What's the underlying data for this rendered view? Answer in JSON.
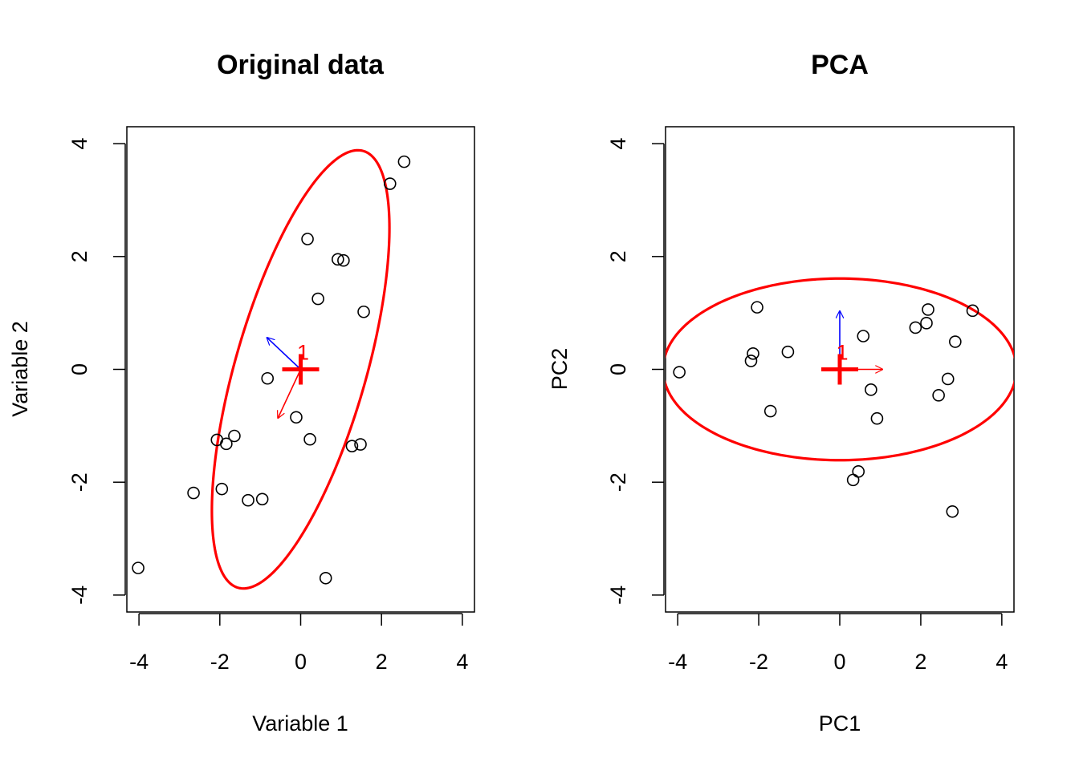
{
  "chart_data": [
    {
      "type": "scatter",
      "title": "Original data",
      "xlabel": "Variable 1",
      "ylabel": "Variable 2",
      "xlim": [
        -4.3,
        4.3
      ],
      "ylim": [
        -4.3,
        4.3
      ],
      "xticks": [
        "-4",
        "-2",
        "0",
        "2",
        "4"
      ],
      "yticks": [
        "-4",
        "-2",
        "0",
        "2",
        "4"
      ],
      "grid": false,
      "points": [
        {
          "x": -4.02,
          "y": -3.52
        },
        {
          "x": -2.65,
          "y": -2.19
        },
        {
          "x": -2.07,
          "y": -1.25
        },
        {
          "x": -1.95,
          "y": -2.12
        },
        {
          "x": -1.84,
          "y": -1.32
        },
        {
          "x": -1.64,
          "y": -1.18
        },
        {
          "x": -1.3,
          "y": -2.32
        },
        {
          "x": -0.95,
          "y": -2.3
        },
        {
          "x": -0.82,
          "y": -0.16
        },
        {
          "x": -0.11,
          "y": -0.85
        },
        {
          "x": 0.17,
          "y": 2.31
        },
        {
          "x": 0.23,
          "y": -1.24
        },
        {
          "x": 0.43,
          "y": 1.25
        },
        {
          "x": 0.62,
          "y": -3.7
        },
        {
          "x": 0.92,
          "y": 1.95
        },
        {
          "x": 1.06,
          "y": 1.93
        },
        {
          "x": 1.27,
          "y": -1.36
        },
        {
          "x": 1.48,
          "y": -1.33
        },
        {
          "x": 1.56,
          "y": 1.02
        },
        {
          "x": 2.21,
          "y": 3.29
        },
        {
          "x": 2.56,
          "y": 3.68
        }
      ],
      "center": {
        "x": 0.0,
        "y": 0.0,
        "label": "1",
        "color": "#ff0000"
      },
      "ellipse": {
        "cx": 0.0,
        "cy": 0.0,
        "semi_major": 4.18,
        "semi_minor": 1.56,
        "angle_deg": 66.5,
        "color": "#ff0000"
      },
      "vectors": [
        {
          "dx": -0.83,
          "dy": 0.56,
          "color": "#0000ff"
        },
        {
          "dx": -0.56,
          "dy": -0.86,
          "color": "#ff0000"
        }
      ]
    },
    {
      "type": "scatter",
      "title": "PCA",
      "xlabel": "PC1",
      "ylabel": "PC2",
      "xlim": [
        -4.3,
        4.3
      ],
      "ylim": [
        -4.3,
        4.3
      ],
      "xticks": [
        "-4",
        "-2",
        "0",
        "2",
        "4"
      ],
      "yticks": [
        "-4",
        "-2",
        "0",
        "2",
        "4"
      ],
      "grid": false,
      "points": [
        {
          "x": -3.96,
          "y": -0.05
        },
        {
          "x": -2.19,
          "y": 0.15
        },
        {
          "x": -2.14,
          "y": 0.28
        },
        {
          "x": -2.04,
          "y": 1.1
        },
        {
          "x": -1.71,
          "y": -0.74
        },
        {
          "x": -1.28,
          "y": 0.31
        },
        {
          "x": 0.33,
          "y": -1.96
        },
        {
          "x": 0.46,
          "y": -1.81
        },
        {
          "x": 0.58,
          "y": 0.59
        },
        {
          "x": 0.77,
          "y": -0.36
        },
        {
          "x": 0.92,
          "y": -0.87
        },
        {
          "x": 1.87,
          "y": 0.74
        },
        {
          "x": 2.14,
          "y": 0.82
        },
        {
          "x": 2.18,
          "y": 1.06
        },
        {
          "x": 2.44,
          "y": -0.46
        },
        {
          "x": 2.67,
          "y": -0.17
        },
        {
          "x": 2.78,
          "y": -2.52
        },
        {
          "x": 2.85,
          "y": 0.49
        },
        {
          "x": 3.28,
          "y": 1.04
        }
      ],
      "center": {
        "x": 0.0,
        "y": 0.0,
        "label": "1",
        "color": "#ff0000"
      },
      "ellipse": {
        "cx": 0.0,
        "cy": 0.0,
        "semi_major": 4.36,
        "semi_minor": 1.61,
        "angle_deg": 0,
        "color": "#ff0000"
      },
      "vectors": [
        {
          "dx": 0.0,
          "dy": 1.03,
          "color": "#0000ff"
        },
        {
          "dx": 1.05,
          "dy": 0.0,
          "color": "#ff0000"
        }
      ]
    }
  ]
}
